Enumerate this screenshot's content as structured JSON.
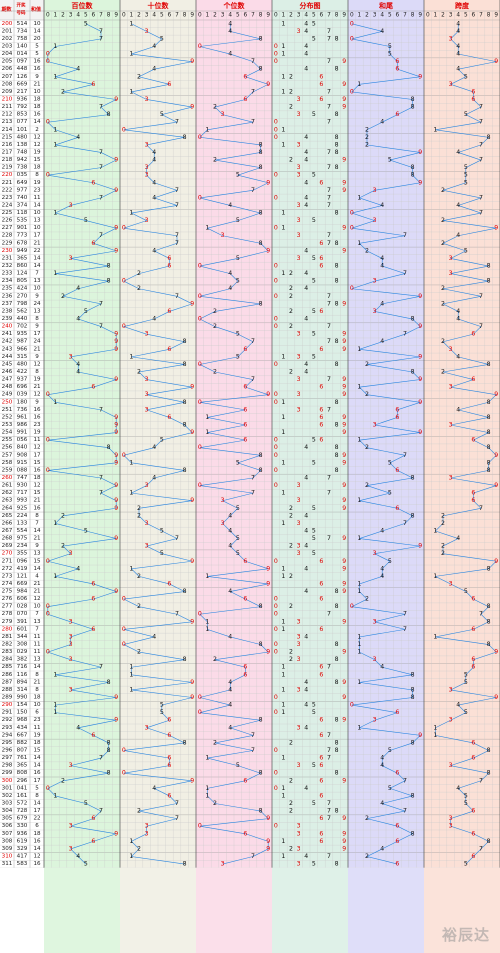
{
  "header": {
    "issue_label": "期数",
    "draw_label": "开奖号码",
    "sum_label": "和值",
    "sections": [
      "百位数",
      "十位数",
      "个位数",
      "分布图",
      "和尾",
      "跨度"
    ],
    "digits": [
      "0",
      "1",
      "2",
      "3",
      "4",
      "5",
      "6",
      "7",
      "8",
      "9"
    ]
  },
  "colors": {
    "red": "#e00000",
    "line": "#2a86e0",
    "bg_hundreds": "#dcf5dc",
    "bg_tens": "#f1efe4",
    "bg_units": "#fbdbe8",
    "bg_dist": "#dcefe6",
    "bg_sum": "#dcdaf8",
    "bg_span": "#fbe0d6"
  },
  "watermark": "裕辰达",
  "chart_data": {
    "type": "table",
    "columns": [
      "issue",
      "draw",
      "sum"
    ],
    "rows": [
      [
        "200",
        "514",
        "10"
      ],
      [
        "201",
        "734",
        "14"
      ],
      [
        "202",
        "758",
        "20"
      ],
      [
        "203",
        "140",
        "5"
      ],
      [
        "204",
        "014",
        "5"
      ],
      [
        "205",
        "097",
        "16"
      ],
      [
        "206",
        "448",
        "16"
      ],
      [
        "207",
        "126",
        "9"
      ],
      [
        "208",
        "669",
        "21"
      ],
      [
        "209",
        "217",
        "10"
      ],
      [
        "210",
        "936",
        "18"
      ],
      [
        "211",
        "792",
        "18"
      ],
      [
        "212",
        "853",
        "16"
      ],
      [
        "213",
        "077",
        "14"
      ],
      [
        "214",
        "101",
        "2"
      ],
      [
        "215",
        "480",
        "12"
      ],
      [
        "216",
        "138",
        "12"
      ],
      [
        "217",
        "748",
        "19"
      ],
      [
        "218",
        "942",
        "15"
      ],
      [
        "219",
        "738",
        "18"
      ],
      [
        "220",
        "035",
        "8"
      ],
      [
        "221",
        "649",
        "19"
      ],
      [
        "222",
        "977",
        "23"
      ],
      [
        "223",
        "740",
        "11"
      ],
      [
        "224",
        "374",
        "14"
      ],
      [
        "225",
        "118",
        "10"
      ],
      [
        "226",
        "535",
        "13"
      ],
      [
        "227",
        "901",
        "10"
      ],
      [
        "228",
        "773",
        "17"
      ],
      [
        "229",
        "678",
        "21"
      ],
      [
        "230",
        "949",
        "22"
      ],
      [
        "231",
        "365",
        "14"
      ],
      [
        "232",
        "860",
        "14"
      ],
      [
        "233",
        "124",
        "7"
      ],
      [
        "234",
        "805",
        "13"
      ],
      [
        "235",
        "424",
        "10"
      ],
      [
        "236",
        "270",
        "9"
      ],
      [
        "237",
        "798",
        "24"
      ],
      [
        "238",
        "562",
        "13"
      ],
      [
        "239",
        "440",
        "8"
      ],
      [
        "240",
        "702",
        "9"
      ],
      [
        "241",
        "935",
        "17"
      ],
      [
        "242",
        "987",
        "24"
      ],
      [
        "243",
        "966",
        "21"
      ],
      [
        "244",
        "315",
        "9"
      ],
      [
        "245",
        "480",
        "12"
      ],
      [
        "246",
        "422",
        "8"
      ],
      [
        "247",
        "937",
        "19"
      ],
      [
        "248",
        "696",
        "21"
      ],
      [
        "249",
        "039",
        "12"
      ],
      [
        "250",
        "180",
        "9"
      ],
      [
        "251",
        "736",
        "16"
      ],
      [
        "252",
        "961",
        "16"
      ],
      [
        "253",
        "986",
        "23"
      ],
      [
        "254",
        "991",
        "19"
      ],
      [
        "255",
        "056",
        "11"
      ],
      [
        "256",
        "840",
        "12"
      ],
      [
        "257",
        "908",
        "17"
      ],
      [
        "258",
        "915",
        "15"
      ],
      [
        "259",
        "088",
        "16"
      ],
      [
        "260",
        "747",
        "18"
      ],
      [
        "261",
        "930",
        "12"
      ],
      [
        "262",
        "717",
        "15"
      ],
      [
        "263",
        "993",
        "21"
      ],
      [
        "264",
        "925",
        "16"
      ],
      [
        "265",
        "224",
        "8"
      ],
      [
        "266",
        "133",
        "7"
      ],
      [
        "267",
        "554",
        "14"
      ],
      [
        "268",
        "975",
        "21"
      ],
      [
        "269",
        "234",
        "9"
      ],
      [
        "270",
        "355",
        "13"
      ],
      [
        "271",
        "096",
        "15"
      ],
      [
        "272",
        "419",
        "14"
      ],
      [
        "273",
        "121",
        "4"
      ],
      [
        "274",
        "669",
        "21"
      ],
      [
        "275",
        "984",
        "21"
      ],
      [
        "276",
        "606",
        "12"
      ],
      [
        "277",
        "028",
        "10"
      ],
      [
        "278",
        "070",
        "7"
      ],
      [
        "279",
        "391",
        "13"
      ],
      [
        "280",
        "601",
        "7"
      ],
      [
        "281",
        "344",
        "11"
      ],
      [
        "282",
        "308",
        "11"
      ],
      [
        "283",
        "029",
        "11"
      ],
      [
        "284",
        "382",
        "13"
      ],
      [
        "285",
        "716",
        "14"
      ],
      [
        "286",
        "116",
        "8"
      ],
      [
        "287",
        "894",
        "21"
      ],
      [
        "288",
        "314",
        "8"
      ],
      [
        "289",
        "990",
        "18"
      ],
      [
        "290",
        "154",
        "10"
      ],
      [
        "291",
        "150",
        "6"
      ],
      [
        "292",
        "968",
        "23"
      ],
      [
        "293",
        "434",
        "11"
      ],
      [
        "294",
        "667",
        "19"
      ],
      [
        "295",
        "882",
        "18"
      ],
      [
        "296",
        "807",
        "15"
      ],
      [
        "297",
        "761",
        "14"
      ],
      [
        "298",
        "365",
        "14"
      ],
      [
        "299",
        "808",
        "16"
      ],
      [
        "300",
        "296",
        "17"
      ],
      [
        "301",
        "041",
        "5"
      ],
      [
        "302",
        "161",
        "8"
      ],
      [
        "303",
        "572",
        "14"
      ],
      [
        "304",
        "728",
        "17"
      ],
      [
        "305",
        "679",
        "22"
      ],
      [
        "306",
        "330",
        "6"
      ],
      [
        "307",
        "936",
        "18"
      ],
      [
        "308",
        "619",
        "16"
      ],
      [
        "309",
        "329",
        "14"
      ],
      [
        "310",
        "417",
        "12"
      ],
      [
        "311",
        "583",
        "16"
      ]
    ]
  }
}
